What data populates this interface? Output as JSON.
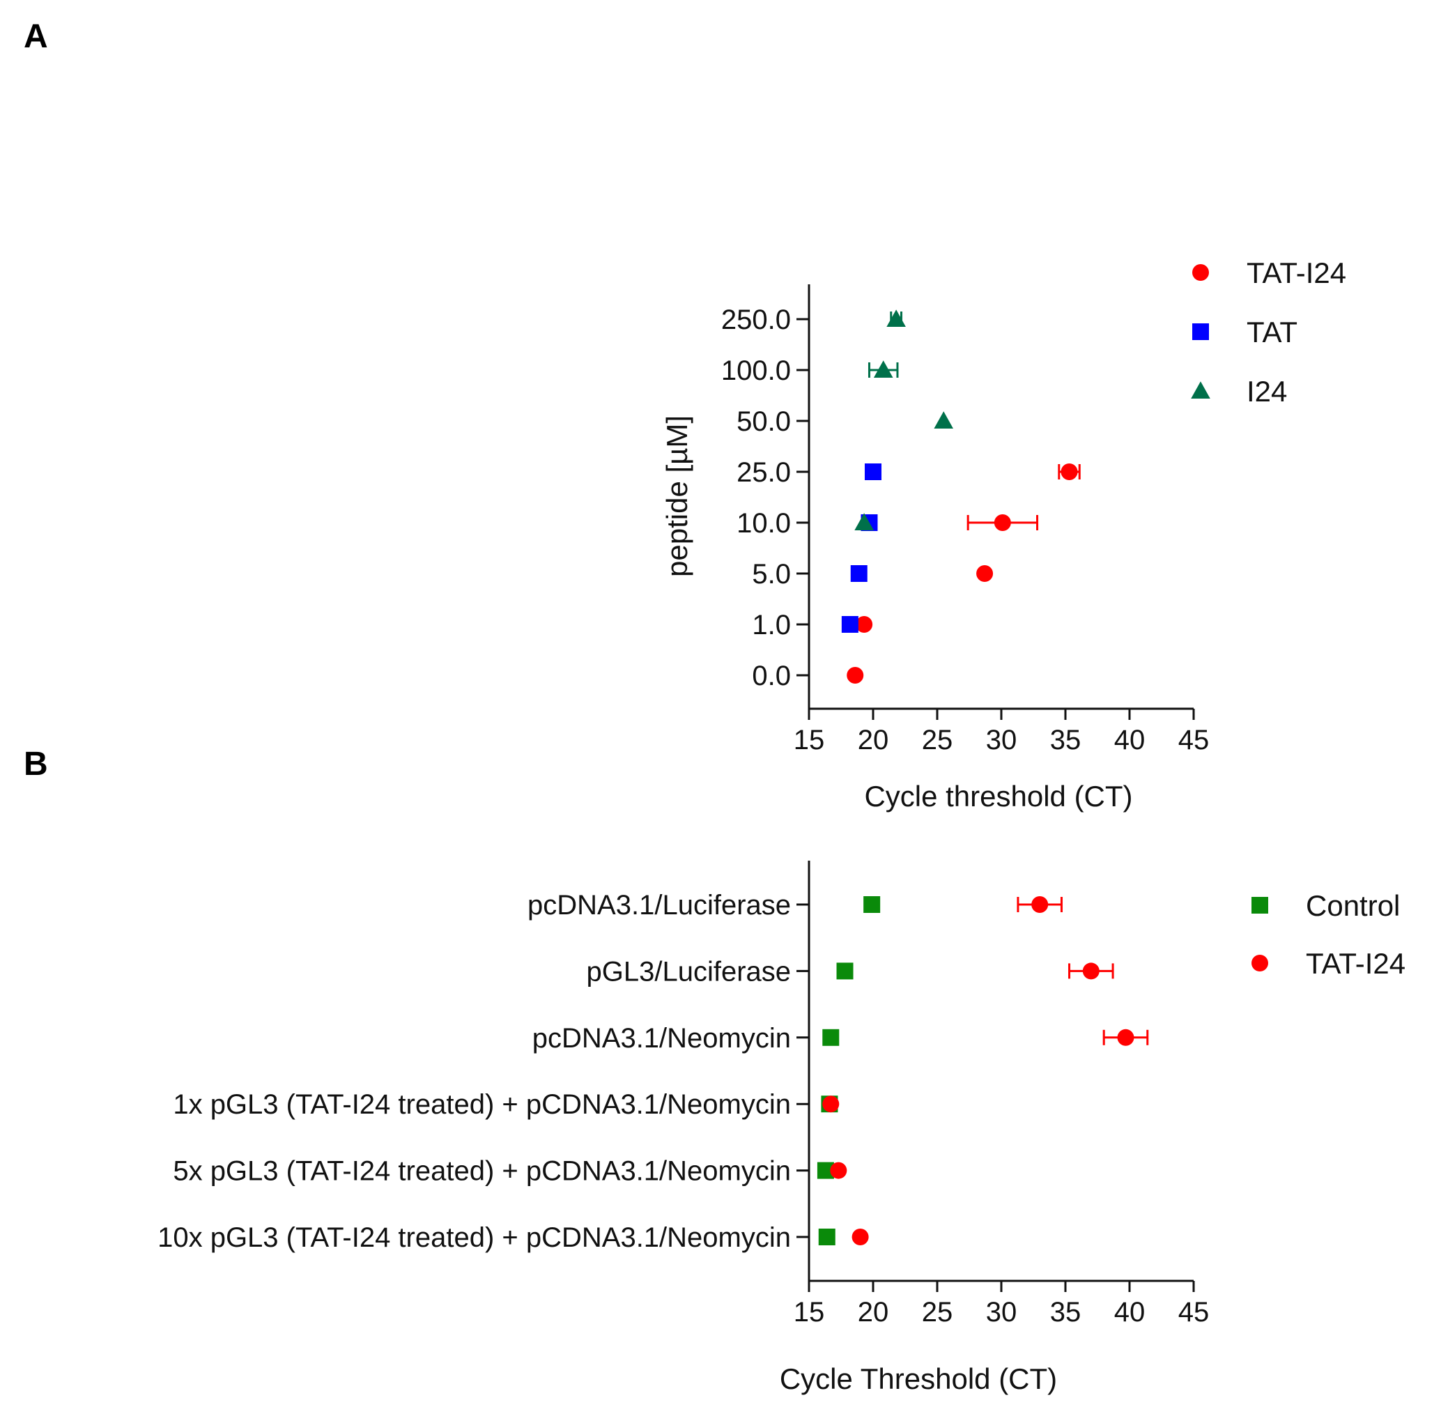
{
  "panels": {
    "a_label": "A",
    "b_label": "B"
  },
  "chart_data": [
    {
      "id": "A",
      "type": "scatter",
      "orientation": "horizontal-categories",
      "xlabel": "Cycle threshold (CT)",
      "ylabel": "peptide [µM]",
      "xlim": [
        15,
        45
      ],
      "xticks": [
        "15",
        "20",
        "25",
        "30",
        "35",
        "40",
        "45"
      ],
      "categories": [
        "250.0",
        "100.0",
        "50.0",
        "25.0",
        "10.0",
        "5.0",
        "1.0",
        "0.0"
      ],
      "legend_position": "top-right",
      "series": [
        {
          "name": "TAT-I24",
          "color": "#ff0000",
          "marker": "circle",
          "points": [
            {
              "category": "25.0",
              "x": 35.3,
              "err": 0.8
            },
            {
              "category": "10.0",
              "x": 30.1,
              "err": 2.7
            },
            {
              "category": "5.0",
              "x": 28.7,
              "err": 0
            },
            {
              "category": "1.0",
              "x": 19.3,
              "err": 0
            },
            {
              "category": "0.0",
              "x": 18.6,
              "err": 0
            }
          ]
        },
        {
          "name": "TAT",
          "color": "#0000ff",
          "marker": "square",
          "points": [
            {
              "category": "25.0",
              "x": 20.0,
              "err": 0
            },
            {
              "category": "10.0",
              "x": 19.7,
              "err": 0.5
            },
            {
              "category": "5.0",
              "x": 18.9,
              "err": 0
            },
            {
              "category": "1.0",
              "x": 18.2,
              "err": 0
            }
          ]
        },
        {
          "name": "I24",
          "color": "#00704a",
          "marker": "triangle",
          "points": [
            {
              "category": "250.0",
              "x": 21.8,
              "err": 0.4
            },
            {
              "category": "100.0",
              "x": 20.8,
              "err": 1.1
            },
            {
              "category": "50.0",
              "x": 25.5,
              "err": 0
            },
            {
              "category": "10.0",
              "x": 19.3,
              "err": 0
            }
          ]
        }
      ]
    },
    {
      "id": "B",
      "type": "scatter",
      "orientation": "horizontal-categories",
      "xlabel": "Cycle Threshold (CT)",
      "ylabel": "",
      "xlim": [
        15,
        45
      ],
      "xticks": [
        "15",
        "20",
        "25",
        "30",
        "35",
        "40",
        "45"
      ],
      "categories": [
        "pcDNA3.1/Luciferase",
        "pGL3/Luciferase",
        "pcDNA3.1/Neomycin",
        "1x pGL3 (TAT-I24 treated) + pCDNA3.1/Neomycin",
        "5x pGL3 (TAT-I24 treated) + pCDNA3.1/Neomycin",
        "10x pGL3 (TAT-I24 treated) + pCDNA3.1/Neomycin"
      ],
      "legend_position": "top-right",
      "series": [
        {
          "name": "Control",
          "color": "#0a8a0a",
          "marker": "square",
          "points": [
            {
              "category": "pcDNA3.1/Luciferase",
              "x": 19.9,
              "err": 0
            },
            {
              "category": "pGL3/Luciferase",
              "x": 17.8,
              "err": 0
            },
            {
              "category": "pcDNA3.1/Neomycin",
              "x": 16.7,
              "err": 0
            },
            {
              "category": "1x pGL3 (TAT-I24 treated) + pCDNA3.1/Neomycin",
              "x": 16.6,
              "err": 0
            },
            {
              "category": "5x pGL3 (TAT-I24 treated) + pCDNA3.1/Neomycin",
              "x": 16.3,
              "err": 0
            },
            {
              "category": "10x pGL3 (TAT-I24 treated) + pCDNA3.1/Neomycin",
              "x": 16.4,
              "err": 0
            }
          ]
        },
        {
          "name": "TAT-I24",
          "color": "#ff0000",
          "marker": "circle",
          "points": [
            {
              "category": "pcDNA3.1/Luciferase",
              "x": 33.0,
              "err": 1.7
            },
            {
              "category": "pGL3/Luciferase",
              "x": 37.0,
              "err": 1.7
            },
            {
              "category": "pcDNA3.1/Neomycin",
              "x": 39.7,
              "err": 1.7
            },
            {
              "category": "1x pGL3 (TAT-I24 treated) + pCDNA3.1/Neomycin",
              "x": 16.7,
              "err": 0
            },
            {
              "category": "5x pGL3 (TAT-I24 treated) + pCDNA3.1/Neomycin",
              "x": 17.3,
              "err": 0
            },
            {
              "category": "10x pGL3 (TAT-I24 treated) + pCDNA3.1/Neomycin",
              "x": 19.0,
              "err": 0
            }
          ]
        }
      ]
    }
  ]
}
